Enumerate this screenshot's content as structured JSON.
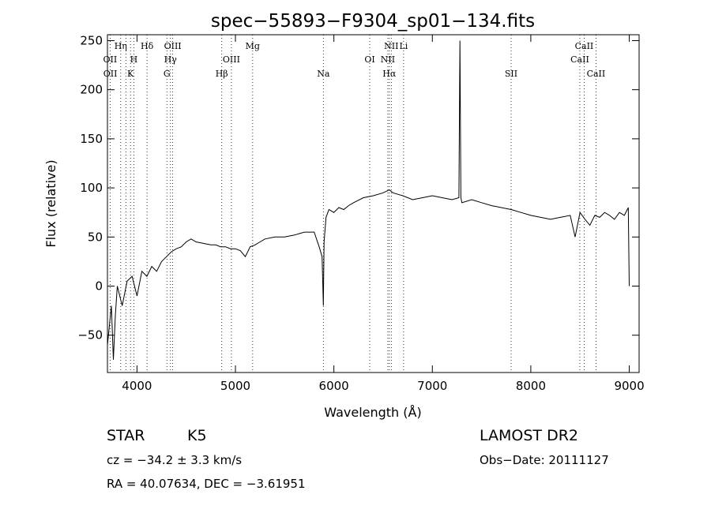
{
  "chart_data": {
    "type": "line",
    "title": "spec−55893−F9304_sp01−134.fits",
    "xlabel": "Wavelength (Å)",
    "ylabel": "Flux (relative)",
    "xlim": [
      3700,
      9100
    ],
    "ylim": [
      -88,
      256
    ],
    "x_ticks": [
      4000,
      5000,
      6000,
      7000,
      8000,
      9000
    ],
    "y_ticks": [
      -50,
      0,
      50,
      100,
      150,
      200,
      250
    ],
    "y_tick_labels": [
      "−50",
      "0",
      "50",
      "100",
      "150",
      "200",
      "250"
    ],
    "grid": false,
    "line_color": "#000000",
    "series": [
      {
        "x": [
          3700,
          3720,
          3740,
          3760,
          3780,
          3800,
          3850,
          3900,
          3950,
          4000,
          4050,
          4100,
          4150,
          4200,
          4250,
          4300,
          4350,
          4400,
          4450,
          4500,
          4550,
          4600,
          4650,
          4700,
          4750,
          4800,
          4850,
          4900,
          4950,
          5000,
          5050,
          5100,
          5150,
          5200,
          5250,
          5300,
          5400,
          5500,
          5600,
          5700,
          5800,
          5850,
          5880,
          5893,
          5900,
          5920,
          5950,
          6000,
          6050,
          6100,
          6150,
          6200,
          6300,
          6400,
          6500,
          6563,
          6600,
          6700,
          6800,
          6900,
          7000,
          7100,
          7200,
          7270,
          7280,
          7290,
          7300,
          7400,
          7500,
          7600,
          7700,
          7800,
          7900,
          8000,
          8100,
          8200,
          8300,
          8400,
          8450,
          8500,
          8550,
          8600,
          8650,
          8700,
          8750,
          8800,
          8850,
          8900,
          8950,
          8990,
          9000
        ],
        "y": [
          -60,
          -40,
          -20,
          -75,
          -30,
          0,
          -20,
          5,
          10,
          -10,
          15,
          10,
          20,
          15,
          25,
          30,
          35,
          38,
          40,
          45,
          48,
          45,
          44,
          43,
          42,
          42,
          40,
          40,
          38,
          38,
          36,
          30,
          40,
          42,
          45,
          48,
          50,
          50,
          52,
          55,
          55,
          40,
          30,
          -20,
          45,
          70,
          78,
          75,
          80,
          78,
          82,
          85,
          90,
          92,
          95,
          98,
          95,
          92,
          88,
          90,
          92,
          90,
          88,
          90,
          250,
          90,
          85,
          88,
          85,
          82,
          80,
          78,
          75,
          72,
          70,
          68,
          70,
          72,
          50,
          75,
          68,
          62,
          72,
          70,
          75,
          72,
          68,
          75,
          72,
          80,
          0
        ]
      }
    ],
    "line_labels": [
      {
        "text": "Hη",
        "x": 3835,
        "row": 1
      },
      {
        "text": "OII",
        "x": 3727,
        "row": 2
      },
      {
        "text": "OII",
        "x": 3729,
        "row": 3
      },
      {
        "text": "Hδ",
        "x": 4102,
        "row": 1
      },
      {
        "text": "H",
        "x": 3968,
        "row": 2
      },
      {
        "text": "K",
        "x": 3934,
        "row": 3
      },
      {
        "text": "OIII",
        "x": 4363,
        "row": 1
      },
      {
        "text": "Hγ",
        "x": 4340,
        "row": 2
      },
      {
        "text": "G",
        "x": 4304,
        "row": 3
      },
      {
        "text": "Hβ",
        "x": 4861,
        "row": 3
      },
      {
        "text": "OIII",
        "x": 4959,
        "row": 2
      },
      {
        "text": "Mg",
        "x": 5175,
        "row": 1
      },
      {
        "text": "Na",
        "x": 5893,
        "row": 3
      },
      {
        "text": "NII",
        "x": 6583,
        "row": 1
      },
      {
        "text": "Li",
        "x": 6708,
        "row": 1
      },
      {
        "text": "OI",
        "x": 6364,
        "row": 2
      },
      {
        "text": "NII",
        "x": 6548,
        "row": 2
      },
      {
        "text": "Hα",
        "x": 6563,
        "row": 3
      },
      {
        "text": "SII",
        "x": 7800,
        "row": 3
      },
      {
        "text": "CaII",
        "x": 8542,
        "row": 1
      },
      {
        "text": "CaII",
        "x": 8498,
        "row": 2
      },
      {
        "text": "CaII",
        "x": 8662,
        "row": 3
      }
    ],
    "line_markers": [
      3727,
      3835,
      3889,
      3934,
      3968,
      4102,
      4304,
      4340,
      4363,
      4861,
      4959,
      5175,
      5893,
      6364,
      6548,
      6563,
      6583,
      6708,
      7800,
      8498,
      8542,
      8662
    ]
  },
  "info": {
    "object_class": "STAR",
    "subclass": "K5",
    "survey": "LAMOST DR2",
    "redshift": "cz = −34.2 ± 3.3 km/s",
    "obs_date": "Obs−Date: 20111127",
    "coords": "RA =  40.07634, DEC =  −3.61951"
  }
}
